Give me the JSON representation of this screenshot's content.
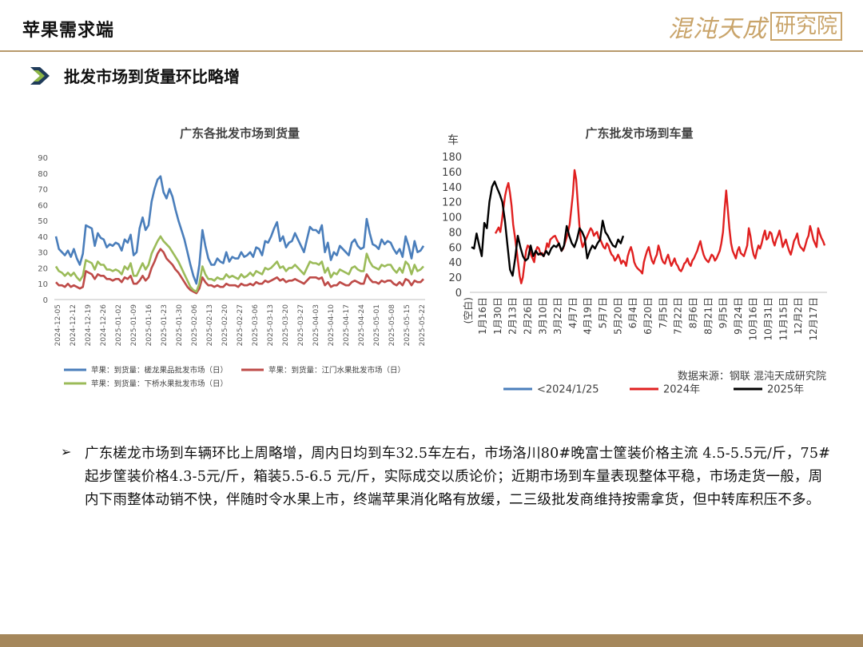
{
  "header": {
    "title": "苹果需求端",
    "brand_text": "混沌天成",
    "brand_box": "研究院",
    "section_heading": "批发市场到货量环比略增"
  },
  "colors": {
    "rule": "#b89a6c",
    "footer": "#a5875b",
    "brand": "#c9a46a",
    "arrow_dark": "#1f3b5a",
    "arrow_light": "#8cb545"
  },
  "chart_data": [
    {
      "type": "line",
      "title": "广东各批发市场到货量",
      "ylim": [
        0,
        90
      ],
      "yticks": [
        0,
        10,
        20,
        30,
        40,
        50,
        60,
        70,
        80,
        90
      ],
      "grid": false,
      "legend_position": "bottom",
      "x_tick_labels": [
        "2024-12-05",
        "2024-12-12",
        "2024-12-19",
        "2024-12-26",
        "2025-01-02",
        "2025-01-09",
        "2025-01-16",
        "2025-01-23",
        "2025-01-30",
        "2025-02-06",
        "2025-02-13",
        "2025-02-20",
        "2025-02-27",
        "2025-03-06",
        "2025-03-13",
        "2025-03-20",
        "2025-03-27",
        "2025-04-03",
        "2025-04-10",
        "2025-04-17",
        "2025-04-24",
        "2025-05-01",
        "2025-05-08",
        "2025-05-15",
        "2025-05-22"
      ],
      "series": [
        {
          "name": "苹果：到货量：槎龙果品批发市场（日）",
          "color": "#4a7ebb",
          "values": [
            40,
            32,
            30,
            28,
            31,
            27,
            32,
            26,
            22,
            29,
            47,
            46,
            45,
            34,
            42,
            39,
            38,
            33,
            35,
            34,
            36,
            35,
            31,
            38,
            36,
            41,
            28,
            30,
            45,
            52,
            44,
            47,
            62,
            70,
            76,
            78,
            68,
            64,
            70,
            65,
            57,
            50,
            44,
            38,
            30,
            22,
            15,
            10,
            22,
            44,
            34,
            26,
            22,
            22,
            26,
            24,
            23,
            30,
            24,
            27,
            26,
            26,
            30,
            27,
            28,
            30,
            27,
            33,
            32,
            28,
            37,
            36,
            40,
            45,
            49,
            37,
            40,
            33,
            36,
            37,
            42,
            38,
            34,
            30,
            38,
            46,
            44,
            44,
            42,
            47,
            30,
            36,
            25,
            30,
            28,
            34,
            32,
            30,
            28,
            36,
            38,
            34,
            32,
            33,
            51,
            42,
            35,
            34,
            32,
            38,
            35,
            37,
            36,
            32,
            29,
            32,
            27,
            40,
            34,
            26,
            37,
            30,
            31,
            34
          ]
        },
        {
          "name": "苹果：到货量：江门水果批发市场（日）",
          "color": "#be4b48",
          "values": [
            11,
            9,
            9,
            8,
            10,
            8,
            9,
            8,
            7,
            8,
            18,
            17,
            16,
            13,
            16,
            15,
            15,
            13,
            13,
            12,
            13,
            13,
            11,
            14,
            13,
            15,
            10,
            10,
            12,
            15,
            12,
            14,
            20,
            24,
            29,
            32,
            30,
            26,
            24,
            22,
            19,
            17,
            14,
            11,
            8,
            6,
            5,
            4,
            7,
            14,
            11,
            9,
            9,
            8,
            9,
            8,
            8,
            10,
            9,
            9,
            9,
            8,
            10,
            9,
            9,
            10,
            9,
            11,
            10,
            10,
            12,
            11,
            12,
            13,
            14,
            12,
            13,
            11,
            12,
            12,
            13,
            12,
            11,
            10,
            12,
            14,
            14,
            14,
            13,
            14,
            9,
            11,
            8,
            9,
            9,
            11,
            10,
            9,
            9,
            11,
            12,
            11,
            10,
            10,
            16,
            13,
            11,
            11,
            10,
            12,
            11,
            12,
            12,
            10,
            9,
            11,
            9,
            13,
            12,
            9,
            12,
            11,
            11,
            13
          ]
        },
        {
          "name": "苹果：到货量：下桥水果批发市场（日）",
          "color": "#9bbb59",
          "values": [
            21,
            18,
            17,
            15,
            17,
            15,
            17,
            14,
            12,
            15,
            25,
            24,
            23,
            19,
            24,
            22,
            22,
            19,
            19,
            18,
            19,
            18,
            16,
            21,
            19,
            23,
            15,
            15,
            19,
            23,
            19,
            22,
            29,
            33,
            37,
            40,
            37,
            35,
            33,
            30,
            27,
            24,
            20,
            16,
            12,
            8,
            6,
            5,
            10,
            21,
            16,
            13,
            13,
            12,
            14,
            13,
            13,
            16,
            14,
            15,
            14,
            13,
            16,
            14,
            15,
            17,
            15,
            18,
            17,
            16,
            20,
            19,
            20,
            22,
            24,
            20,
            21,
            18,
            20,
            20,
            22,
            20,
            18,
            16,
            20,
            24,
            23,
            23,
            22,
            24,
            17,
            20,
            14,
            17,
            16,
            19,
            18,
            17,
            16,
            20,
            21,
            19,
            18,
            18,
            29,
            24,
            21,
            20,
            19,
            22,
            21,
            22,
            22,
            19,
            17,
            20,
            17,
            24,
            22,
            16,
            22,
            18,
            19,
            21
          ]
        }
      ]
    },
    {
      "type": "line",
      "title": "广东批发市场到车量",
      "ylabel": "车",
      "ylim": [
        0,
        180
      ],
      "yticks": [
        0,
        20,
        40,
        60,
        80,
        100,
        120,
        140,
        160,
        180
      ],
      "grid": false,
      "legend_position": "bottom",
      "x_first_label": "(空白)",
      "x_tick_labels": [
        "1月16日",
        "1月30日",
        "2月13日",
        "2月26日",
        "3月10日",
        "3月22日",
        "4月7日",
        "4月19日",
        "5月7日",
        "5月20日",
        "6月4日",
        "6月20日",
        "7月5日",
        "7月22日",
        "8月6日",
        "8月21日",
        "9月5日",
        "9月24日",
        "10月16日",
        "10月31日",
        "11月15日",
        "12月2日",
        "12月17日"
      ],
      "note": "数据来源：钢联  混沌天成研究院",
      "series": [
        {
          "name": "<2024/1/25",
          "color": "#4a7ebb",
          "values": []
        },
        {
          "name": "2024年",
          "color": "#e02020",
          "values": [
            78,
            82,
            86,
            80,
            95,
            112,
            128,
            138,
            145,
            132,
            115,
            90,
            75,
            58,
            40,
            22,
            12,
            20,
            38,
            55,
            62,
            60,
            50,
            45,
            40,
            55,
            60,
            58,
            50,
            52,
            48,
            55,
            65,
            60,
            70,
            72,
            74,
            75,
            70,
            66,
            60,
            55,
            58,
            65,
            72,
            80,
            90,
            110,
            130,
            162,
            150,
            120,
            90,
            70,
            60,
            65,
            70,
            75,
            80,
            85,
            82,
            75,
            78,
            80,
            72,
            70,
            65,
            60,
            58,
            65,
            62,
            55,
            50,
            48,
            42,
            45,
            50,
            45,
            38,
            42,
            40,
            35,
            48,
            55,
            60,
            52,
            40,
            35,
            32,
            30,
            28,
            25,
            40,
            48,
            55,
            60,
            50,
            42,
            38,
            45,
            50,
            62,
            55,
            45,
            40,
            38,
            45,
            50,
            42,
            35,
            40,
            45,
            38,
            35,
            30,
            28,
            32,
            38,
            40,
            45,
            38,
            35,
            42,
            45,
            50,
            55,
            62,
            68,
            58,
            50,
            45,
            42,
            40,
            45,
            50,
            48,
            42,
            45,
            50,
            55,
            65,
            80,
            110,
            135,
            110,
            85,
            65,
            55,
            50,
            45,
            55,
            60,
            52,
            50,
            48,
            55,
            62,
            85,
            75,
            60,
            50,
            45,
            55,
            62,
            58,
            65,
            75,
            82,
            70,
            72,
            80,
            78,
            68,
            62,
            70,
            75,
            82,
            72,
            60,
            65,
            70,
            62,
            55,
            50,
            58,
            68,
            72,
            78,
            65,
            60,
            58,
            55,
            62,
            70,
            75,
            88,
            80,
            70,
            65,
            60,
            85,
            78,
            72,
            68,
            62
          ]
        },
        {
          "name": "2025年",
          "color": "#000000",
          "values": [
            60,
            58,
            78,
            62,
            48,
            92,
            85,
            120,
            140,
            147,
            138,
            130,
            120,
            95,
            62,
            30,
            22,
            45,
            75,
            60,
            48,
            42,
            45,
            62,
            48,
            55,
            50,
            52,
            48,
            55,
            50,
            58,
            62,
            60,
            65,
            55,
            62,
            88,
            75,
            65,
            60,
            70,
            85,
            80,
            72,
            45,
            55,
            62,
            58,
            65,
            70,
            95,
            80,
            75,
            68,
            62,
            60,
            70,
            65,
            75
          ]
        }
      ]
    }
  ],
  "bullet": {
    "mark": "➢",
    "text": "广东槎龙市场到车辆环比上周略增，周内日均到车32.5车左右，市场洛川80#晚富士筐装价格主流 4.5-5.5元/斤，75#起步筐装价格4.3-5元/斤，箱装5.5-6.5 元/斤，实际成交以质论价；近期市场到车量表现整体平稳，市场走货一般，周内下雨整体动销不快，伴随时令水果上市，终端苹果消化略有放缓，二三级批发商维持按需拿货，但中转库积压不多。"
  }
}
